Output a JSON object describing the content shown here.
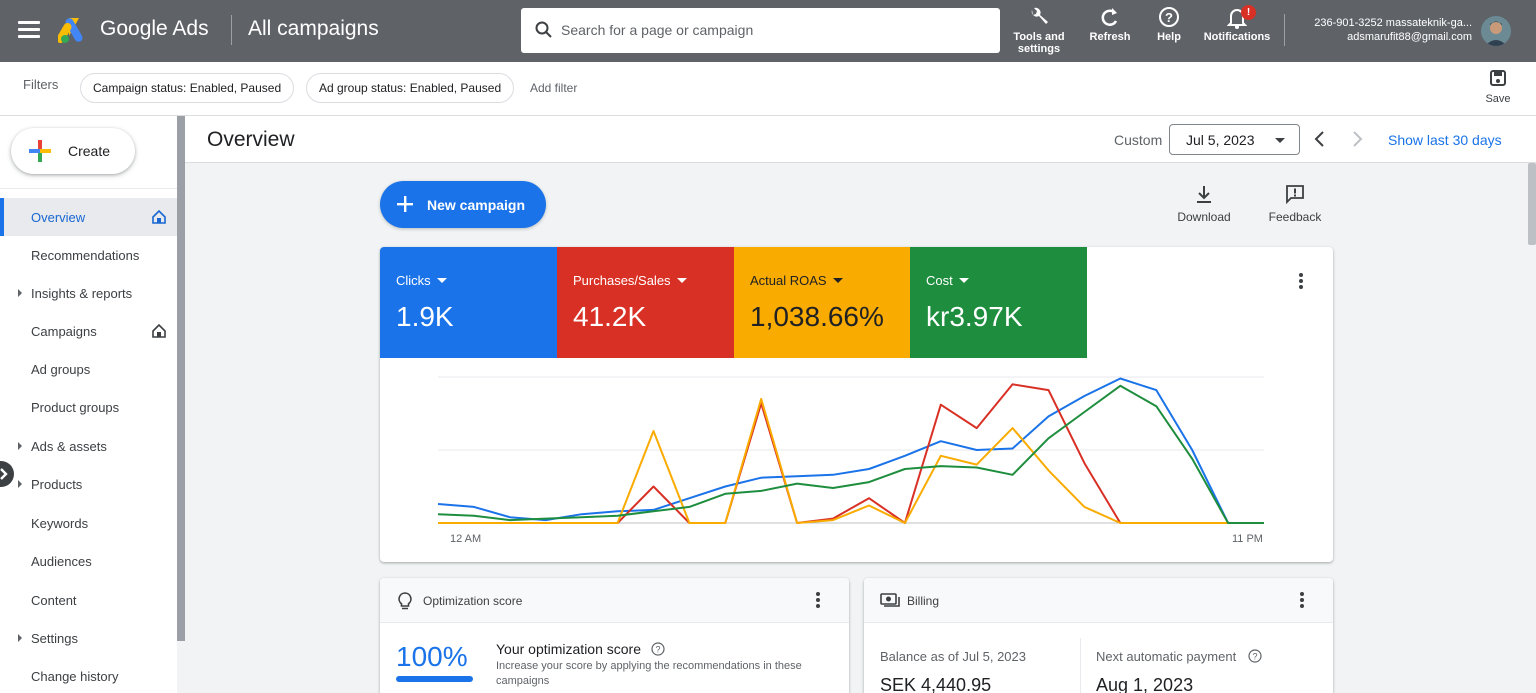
{
  "topbar": {
    "brand": "Google Ads",
    "title": "All campaigns",
    "search_placeholder": "Search for a page or campaign",
    "tools_label_line1": "Tools and",
    "tools_label_line2": "settings",
    "refresh_label": "Refresh",
    "help_label": "Help",
    "notifications_label": "Notifications",
    "notifications_badge": "!",
    "account_id": "236-901-3252 massateknik-ga...",
    "account_email": "adsmarufit88@gmail.com",
    "icons": {
      "menu": "hamburger-icon",
      "logo": "google-ads-logo",
      "search": "search-icon",
      "tools": "wrench-icon",
      "refresh": "refresh-icon",
      "help": "help-icon",
      "notifications": "bell-icon"
    }
  },
  "filterbar": {
    "label": "Filters",
    "chips": [
      "Campaign status: Enabled, Paused",
      "Ad group status: Enabled, Paused"
    ],
    "add_filter": "Add filter",
    "save_label": "Save"
  },
  "sidebar": {
    "create_label": "Create",
    "items": [
      {
        "label": "Overview",
        "active": true,
        "caret": false,
        "home": true
      },
      {
        "label": "Recommendations",
        "active": false,
        "caret": false,
        "home": false
      },
      {
        "label": "Insights & reports",
        "active": false,
        "caret": true,
        "home": false
      },
      {
        "label": "Campaigns",
        "active": false,
        "caret": false,
        "home": true
      },
      {
        "label": "Ad groups",
        "active": false,
        "caret": false,
        "home": false
      },
      {
        "label": "Product groups",
        "active": false,
        "caret": false,
        "home": false
      },
      {
        "label": "Ads & assets",
        "active": false,
        "caret": true,
        "home": false
      },
      {
        "label": "Products",
        "active": false,
        "caret": true,
        "home": false
      },
      {
        "label": "Keywords",
        "active": false,
        "caret": false,
        "home": false
      },
      {
        "label": "Audiences",
        "active": false,
        "caret": false,
        "home": false
      },
      {
        "label": "Content",
        "active": false,
        "caret": false,
        "home": false
      },
      {
        "label": "Settings",
        "active": false,
        "caret": true,
        "home": false
      },
      {
        "label": "Change history",
        "active": false,
        "caret": false,
        "home": false
      }
    ]
  },
  "overview": {
    "title": "Overview",
    "custom_label": "Custom",
    "date": "Jul 5, 2023",
    "show_last": "Show last 30 days",
    "new_campaign": "New campaign",
    "download": "Download",
    "feedback": "Feedback"
  },
  "metrics": [
    {
      "name": "Clicks",
      "value": "1.9K",
      "color": "#1a73e8"
    },
    {
      "name": "Purchases/Sales",
      "value": "41.2K",
      "color": "#d93025"
    },
    {
      "name": "Actual ROAS",
      "value": "1,038.66%",
      "color": "#f9ab00"
    },
    {
      "name": "Cost",
      "value": "kr3.97K",
      "color": "#1e8e3e"
    }
  ],
  "chart_data": {
    "type": "line",
    "x": [
      "12 AM",
      "1 AM",
      "2 AM",
      "3 AM",
      "4 AM",
      "5 AM",
      "6 AM",
      "7 AM",
      "8 AM",
      "9 AM",
      "10 AM",
      "11 AM",
      "12 PM",
      "1 PM",
      "2 PM",
      "3 PM",
      "4 PM",
      "5 PM",
      "6 PM",
      "7 PM",
      "8 PM",
      "9 PM",
      "10 PM",
      "11 PM"
    ],
    "x_tick_labels": [
      "12 AM",
      "11 PM"
    ],
    "ylim": [
      0,
      1
    ],
    "grid": true,
    "series": [
      {
        "name": "Clicks",
        "color": "#1a73e8",
        "values": [
          0.13,
          0.11,
          0.04,
          0.02,
          0.06,
          0.08,
          0.09,
          0.17,
          0.25,
          0.31,
          0.32,
          0.33,
          0.37,
          0.46,
          0.56,
          0.5,
          0.51,
          0.73,
          0.87,
          0.99,
          0.91,
          0.5,
          0,
          0
        ]
      },
      {
        "name": "Purchases/Sales",
        "color": "#d93025",
        "values": [
          0,
          0,
          0,
          0,
          0,
          0,
          0.25,
          0,
          0,
          0.82,
          0,
          0.03,
          0.17,
          0,
          0.81,
          0.65,
          0.95,
          0.91,
          0.41,
          0,
          0,
          0,
          0,
          0
        ]
      },
      {
        "name": "Actual ROAS",
        "color": "#f9ab00",
        "values": [
          0,
          0,
          0,
          0,
          0,
          0,
          0.63,
          0,
          0,
          0.85,
          0,
          0.02,
          0.12,
          0,
          0.46,
          0.4,
          0.65,
          0.36,
          0.11,
          0,
          0,
          0,
          0,
          0
        ]
      },
      {
        "name": "Cost",
        "color": "#1e8e3e",
        "values": [
          0.06,
          0.05,
          0.02,
          0.03,
          0.04,
          0.05,
          0.08,
          0.11,
          0.2,
          0.22,
          0.27,
          0.24,
          0.28,
          0.37,
          0.39,
          0.38,
          0.33,
          0.58,
          0.76,
          0.94,
          0.8,
          0.44,
          0,
          0
        ]
      }
    ]
  },
  "optimization": {
    "title": "Optimization score",
    "percent": "100%",
    "score_fraction": 1.0,
    "heading": "Your optimization score",
    "desc": "Increase your score by applying the recommendations in these campaigns"
  },
  "billing": {
    "title": "Billing",
    "balance_label": "Balance as of Jul 5, 2023",
    "balance_value": "SEK 4,440.95",
    "next_label": "Next automatic payment",
    "next_value": "Aug 1, 2023"
  }
}
